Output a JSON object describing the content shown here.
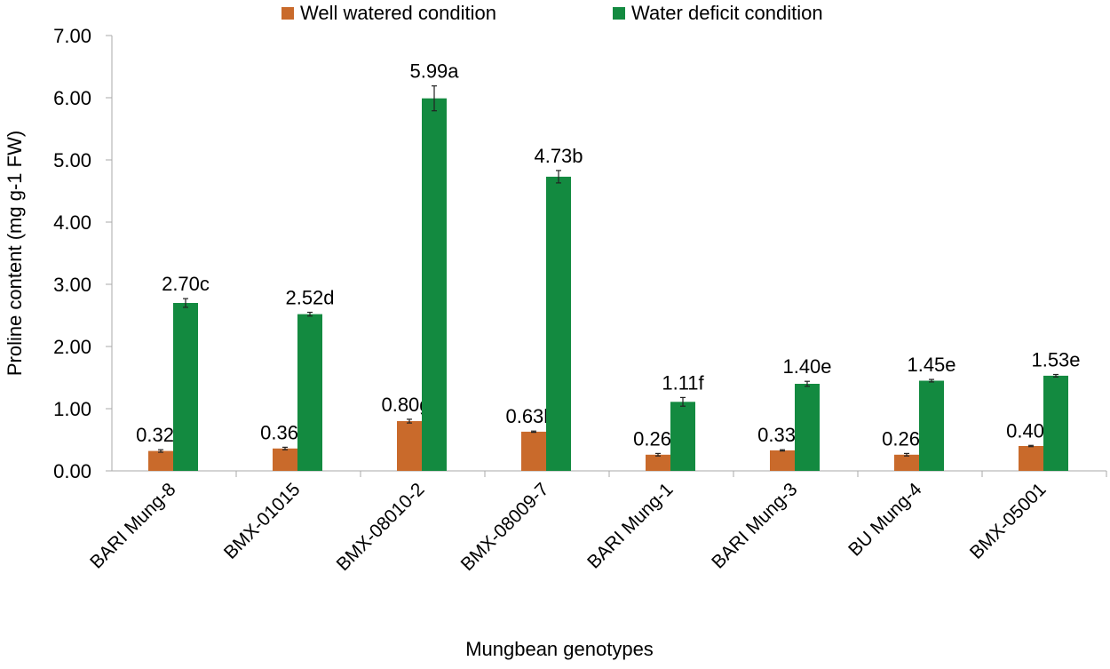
{
  "chart_data": {
    "type": "bar",
    "title": "",
    "xlabel": "Mungbean genotypes",
    "ylabel": "Proline content (mg g-1 FW)",
    "ylim": [
      0,
      7
    ],
    "yticks": [
      "0.00",
      "1.00",
      "2.00",
      "3.00",
      "4.00",
      "5.00",
      "6.00",
      "7.00"
    ],
    "grid": false,
    "legend_placement": "top",
    "categories": [
      "BARI Mung-8",
      "BMX-01015",
      "BMX-08010-2",
      "BMX-08009-7",
      "BARI Mung-1",
      "BARI Mung-3",
      "BU Mung-4",
      "BMX-05001"
    ],
    "series": [
      {
        "name": "Well watered condition",
        "color": "#c96a2b",
        "values": [
          0.32,
          0.36,
          0.8,
          0.63,
          0.26,
          0.33,
          0.26,
          0.4
        ],
        "errors": [
          0.02,
          0.02,
          0.03,
          0.01,
          0.02,
          0.01,
          0.02,
          0.01
        ],
        "labels": [
          "0.32i",
          "0.36i",
          "0.80g",
          "0.63h",
          "0.26i",
          "0.33i",
          "0.26i",
          "0.40i"
        ]
      },
      {
        "name": "Water deficit condition",
        "color": "#138a40",
        "values": [
          2.7,
          2.52,
          5.99,
          4.73,
          1.11,
          1.4,
          1.45,
          1.53
        ],
        "errors": [
          0.07,
          0.03,
          0.2,
          0.1,
          0.07,
          0.04,
          0.02,
          0.02
        ],
        "labels": [
          "2.70c",
          "2.52d",
          "5.99a",
          "4.73b",
          "1.11f",
          "1.40e",
          "1.45e",
          "1.53e"
        ]
      }
    ]
  }
}
